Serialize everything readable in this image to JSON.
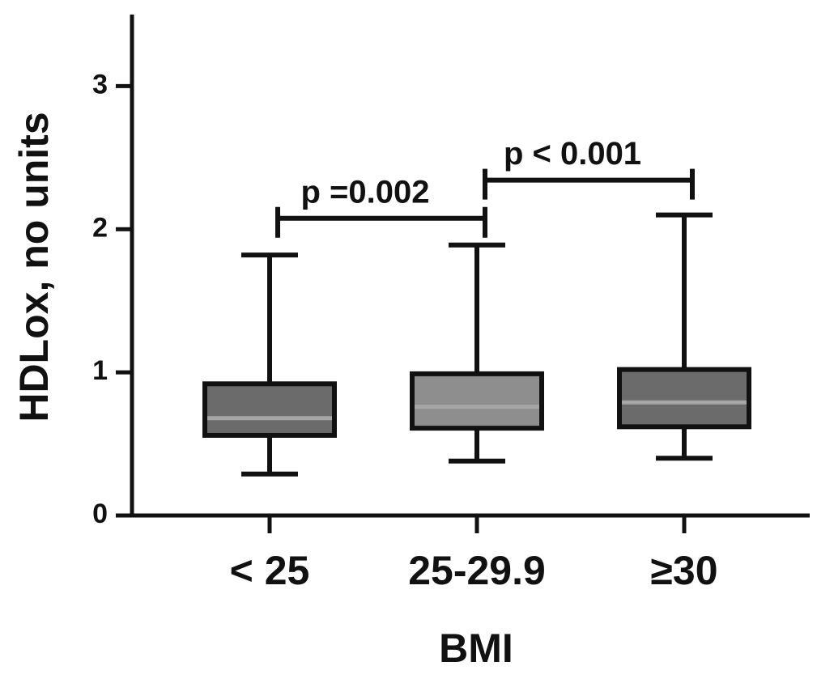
{
  "chart_data": {
    "type": "box",
    "x_label": "BMI",
    "y_label": "HDLox, no units",
    "categories": [
      "< 25",
      "25-29.9",
      "≥30"
    ],
    "min": [
      0.29,
      0.38,
      0.4
    ],
    "q1": [
      0.56,
      0.61,
      0.62
    ],
    "median": [
      0.68,
      0.76,
      0.79
    ],
    "q3": [
      0.92,
      0.99,
      1.02
    ],
    "max": [
      1.82,
      1.89,
      2.1
    ],
    "colors": [
      "#6b6b6b",
      "#8e8e8e",
      "#6b6b6b"
    ],
    "median_color": "#a6a6a6",
    "ylim": [
      0,
      3.5
    ],
    "yticks": [
      0,
      1,
      2,
      3
    ],
    "annotations": [
      {
        "text": "p =0.002"
      },
      {
        "text": "p < 0.001"
      }
    ]
  }
}
